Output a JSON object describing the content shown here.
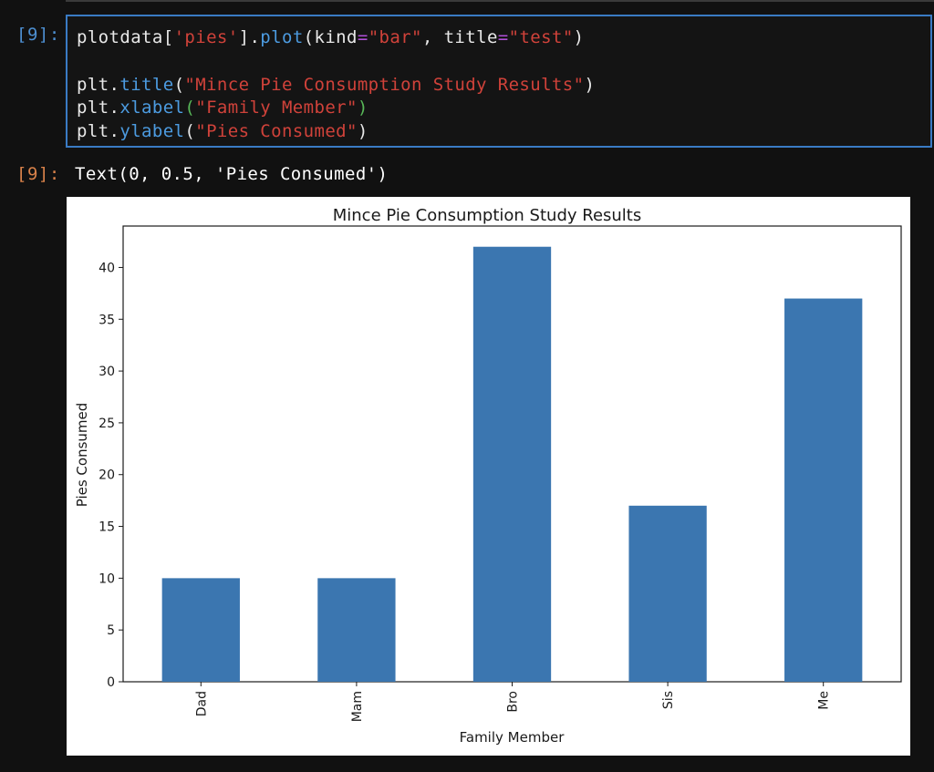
{
  "notebook": {
    "in_prompt": "[9]:",
    "out_prompt": "[9]:",
    "code_lines": [
      [
        [
          "plotdata[",
          "plain"
        ],
        [
          "'pies'",
          "str"
        ],
        [
          "].",
          "plain"
        ],
        [
          "plot",
          "fn"
        ],
        [
          "(kind",
          "plain"
        ],
        [
          "=",
          "kw"
        ],
        [
          "\"bar\"",
          "str"
        ],
        [
          ", title",
          "plain"
        ],
        [
          "=",
          "kw"
        ],
        [
          "\"test\"",
          "str"
        ],
        [
          ")",
          "plain"
        ]
      ],
      [],
      [
        [
          "plt.",
          "plain"
        ],
        [
          "title",
          "fn"
        ],
        [
          "(",
          "plain"
        ],
        [
          "\"Mince Pie Consumption Study Results\"",
          "str"
        ],
        [
          ")",
          "plain"
        ]
      ],
      [
        [
          "plt.",
          "plain"
        ],
        [
          "xlabel",
          "fn"
        ],
        [
          "(",
          "paren-g"
        ],
        [
          "\"Family Member\"",
          "str"
        ],
        [
          ")",
          "paren-g"
        ]
      ],
      [
        [
          "plt.",
          "plain"
        ],
        [
          "ylabel",
          "fn"
        ],
        [
          "(",
          "plain"
        ],
        [
          "\"Pies Consumed\"",
          "str"
        ],
        [
          ")",
          "plain"
        ]
      ]
    ],
    "output_text": "Text(0, 0.5, 'Pies Consumed')"
  },
  "chart_data": {
    "type": "bar",
    "title": "Mince Pie Consumption Study Results",
    "xlabel": "Family Member",
    "ylabel": "Pies Consumed",
    "categories": [
      "Dad",
      "Mam",
      "Bro",
      "Sis",
      "Me"
    ],
    "values": [
      10,
      10,
      42,
      17,
      37
    ],
    "ylim": [
      0,
      44
    ],
    "yticks": [
      0,
      5,
      10,
      15,
      20,
      25,
      30,
      35,
      40
    ],
    "bar_color": "#3b76b0",
    "grid": false,
    "legend": "none",
    "x_tick_rotation": "vertical"
  }
}
